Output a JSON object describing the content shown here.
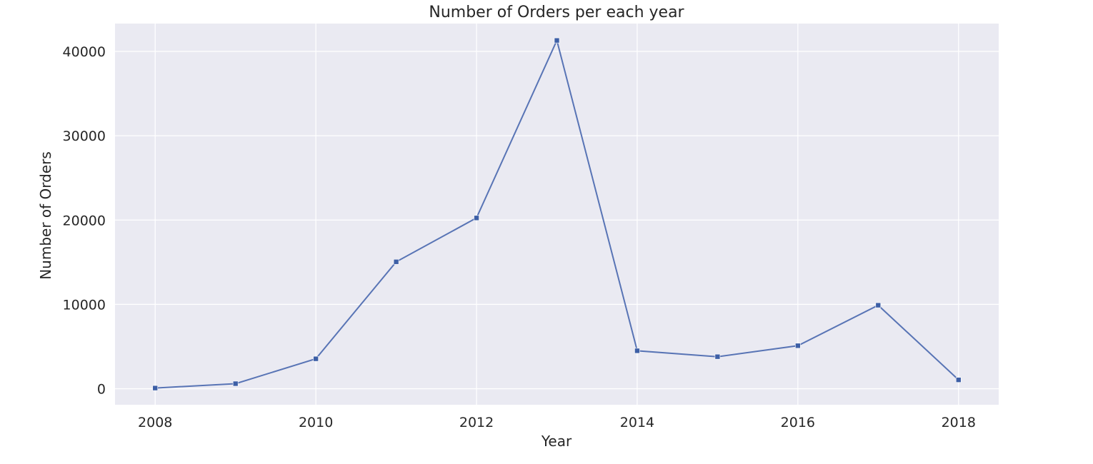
{
  "chart_data": {
    "type": "line",
    "title": "Number of Orders per each year",
    "xlabel": "Year",
    "ylabel": "Number of Orders",
    "x": [
      2008,
      2009,
      2010,
      2011,
      2012,
      2013,
      2014,
      2015,
      2016,
      2017,
      2018
    ],
    "series": [
      {
        "values": [
          80,
          600,
          3550,
          15050,
          20250,
          41300,
          4500,
          3800,
          5100,
          9900,
          1050
        ]
      }
    ],
    "xlim": [
      2007.5,
      2018.5
    ],
    "ylim": [
      -1900,
      43300
    ],
    "xticks": [
      2008,
      2010,
      2012,
      2014,
      2016,
      2018
    ],
    "yticks": [
      0,
      10000,
      20000,
      30000,
      40000
    ],
    "grid": true,
    "marker": "square",
    "colors": {
      "line": "#5874b5",
      "marker": "#3d5fa6",
      "plot_background": "#eaeaf2",
      "grid": "#ffffff"
    }
  }
}
